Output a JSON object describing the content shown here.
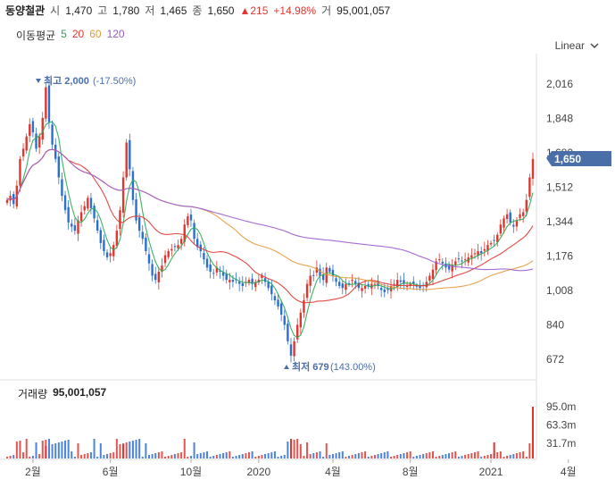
{
  "header": {
    "name": "동양철관",
    "open_label": "시",
    "open": "1,470",
    "high_label": "고",
    "high": "1,780",
    "low_label": "저",
    "low": "1,465",
    "close_label": "종",
    "close": "1,650",
    "change": "▲215",
    "change_pct": "+14.98%",
    "volume_label": "거",
    "volume": "95,001,057"
  },
  "moving_average": {
    "label": "이동평균",
    "periods": [
      {
        "text": "5",
        "color": "#2aa853"
      },
      {
        "text": "20",
        "color": "#e0362f"
      },
      {
        "text": "60",
        "color": "#e39a3a"
      },
      {
        "text": "120",
        "color": "#9b59d0"
      }
    ]
  },
  "scale_toggle": {
    "label": "Linear",
    "icon": "chevron-down-icon"
  },
  "volume_panel": {
    "label": "거래량",
    "value": "95,001,057"
  },
  "annotations": {
    "high": {
      "text": "최고 2,000",
      "pct": "(-17.50%)"
    },
    "low": {
      "text": "최저 679",
      "pct": "(143.00%)"
    }
  },
  "price_tag": {
    "text": "1,650",
    "color": "#4a6ea8"
  },
  "chart_data": {
    "type": "candlestick",
    "y_ticks": [
      "2,016",
      "1,848",
      "1,680",
      "1,512",
      "1,344",
      "1,176",
      "1,008",
      "840",
      "672"
    ],
    "y_tick_values": [
      2016,
      1848,
      1680,
      1512,
      1344,
      1176,
      1008,
      840,
      672
    ],
    "ylim": [
      590,
      2100
    ],
    "volume_ticks": [
      "95.0m",
      "63.3m",
      "31.7m"
    ],
    "volume_tick_values": [
      95.0,
      63.3,
      31.7
    ],
    "x_ticks": [
      "2월",
      "6월",
      "10월",
      "2020",
      "4월",
      "8월",
      "2021",
      "4월"
    ],
    "x_tick_index": [
      8,
      32,
      57,
      78,
      101,
      125,
      150,
      174
    ],
    "close": [
      1450,
      1470,
      1430,
      1520,
      1650,
      1700,
      1760,
      1820,
      1780,
      1700,
      1760,
      1850,
      2000,
      1830,
      1720,
      1650,
      1560,
      1470,
      1400,
      1340,
      1320,
      1300,
      1350,
      1390,
      1420,
      1460,
      1410,
      1360,
      1300,
      1240,
      1200,
      1170,
      1190,
      1230,
      1300,
      1400,
      1560,
      1730,
      1600,
      1450,
      1350,
      1300,
      1260,
      1200,
      1140,
      1080,
      1060,
      1100,
      1130,
      1180,
      1200,
      1210,
      1220,
      1230,
      1260,
      1330,
      1370,
      1350,
      1260,
      1220,
      1200,
      1160,
      1120,
      1100,
      1090,
      1120,
      1100,
      1080,
      1060,
      1060,
      1050,
      1060,
      1040,
      1030,
      1050,
      1060,
      1040,
      1050,
      1060,
      1080,
      1050,
      1020,
      990,
      960,
      930,
      890,
      840,
      760,
      690,
      760,
      840,
      900,
      960,
      1040,
      1080,
      1080,
      1120,
      1080,
      1060,
      1120,
      1100,
      1080,
      1050,
      1030,
      1020,
      1040,
      1040,
      1060,
      1040,
      1020,
      1020,
      1030,
      1030,
      1040,
      1040,
      1030,
      1010,
      1000,
      1010,
      1030,
      1040,
      1060,
      1050,
      1040,
      1030,
      1040,
      1040,
      1030,
      1020,
      1030,
      1050,
      1080,
      1110,
      1150,
      1160,
      1140,
      1120,
      1110,
      1130,
      1150,
      1160,
      1150,
      1160,
      1170,
      1180,
      1190,
      1200,
      1190,
      1210,
      1230,
      1240,
      1250,
      1280,
      1330,
      1360,
      1380,
      1340,
      1320,
      1350,
      1380,
      1390,
      1450,
      1560,
      1650
    ],
    "ma5_color": "#2aa853",
    "ma20_color": "#e0362f",
    "ma60_color": "#e39a3a",
    "ma120_color": "#9b59d0",
    "up_color": "#e0362f",
    "down_color": "#2b6fd1",
    "y_axis_range_shown": [
      672,
      2016
    ]
  }
}
